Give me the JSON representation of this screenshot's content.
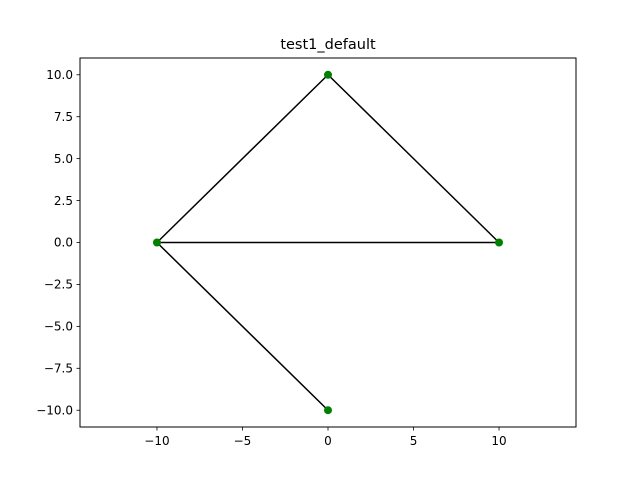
{
  "chart_data": {
    "type": "scatter",
    "title": "test1_default",
    "xlabel": "",
    "ylabel": "",
    "xlim": [
      -14.5,
      14.5
    ],
    "ylim": [
      -11,
      11
    ],
    "x_ticks": [
      -10,
      -5,
      0,
      5,
      10
    ],
    "x_tick_labels": [
      "−10",
      "−5",
      "0",
      "5",
      "10"
    ],
    "y_ticks": [
      10.0,
      7.5,
      5.0,
      2.5,
      0.0,
      -2.5,
      -5.0,
      -7.5,
      -10.0
    ],
    "y_tick_labels": [
      "10.0",
      "7.5",
      "5.0",
      "2.5",
      "0.0",
      "−2.5",
      "−5.0",
      "−7.5",
      "−10.0"
    ],
    "grid": false,
    "nodes": [
      {
        "x": 0,
        "y": 10
      },
      {
        "x": -10,
        "y": 0
      },
      {
        "x": 10,
        "y": 0
      },
      {
        "x": 0,
        "y": -10
      }
    ],
    "edges": [
      {
        "from": [
          0,
          10
        ],
        "to": [
          -10,
          0
        ]
      },
      {
        "from": [
          0,
          10
        ],
        "to": [
          10,
          0
        ]
      },
      {
        "from": [
          -10,
          0
        ],
        "to": [
          10,
          0
        ]
      },
      {
        "from": [
          -10,
          0
        ],
        "to": [
          0,
          -10
        ]
      }
    ],
    "colors": {
      "marker": "#008000",
      "edge": "#000000",
      "axes": "#000000"
    }
  }
}
